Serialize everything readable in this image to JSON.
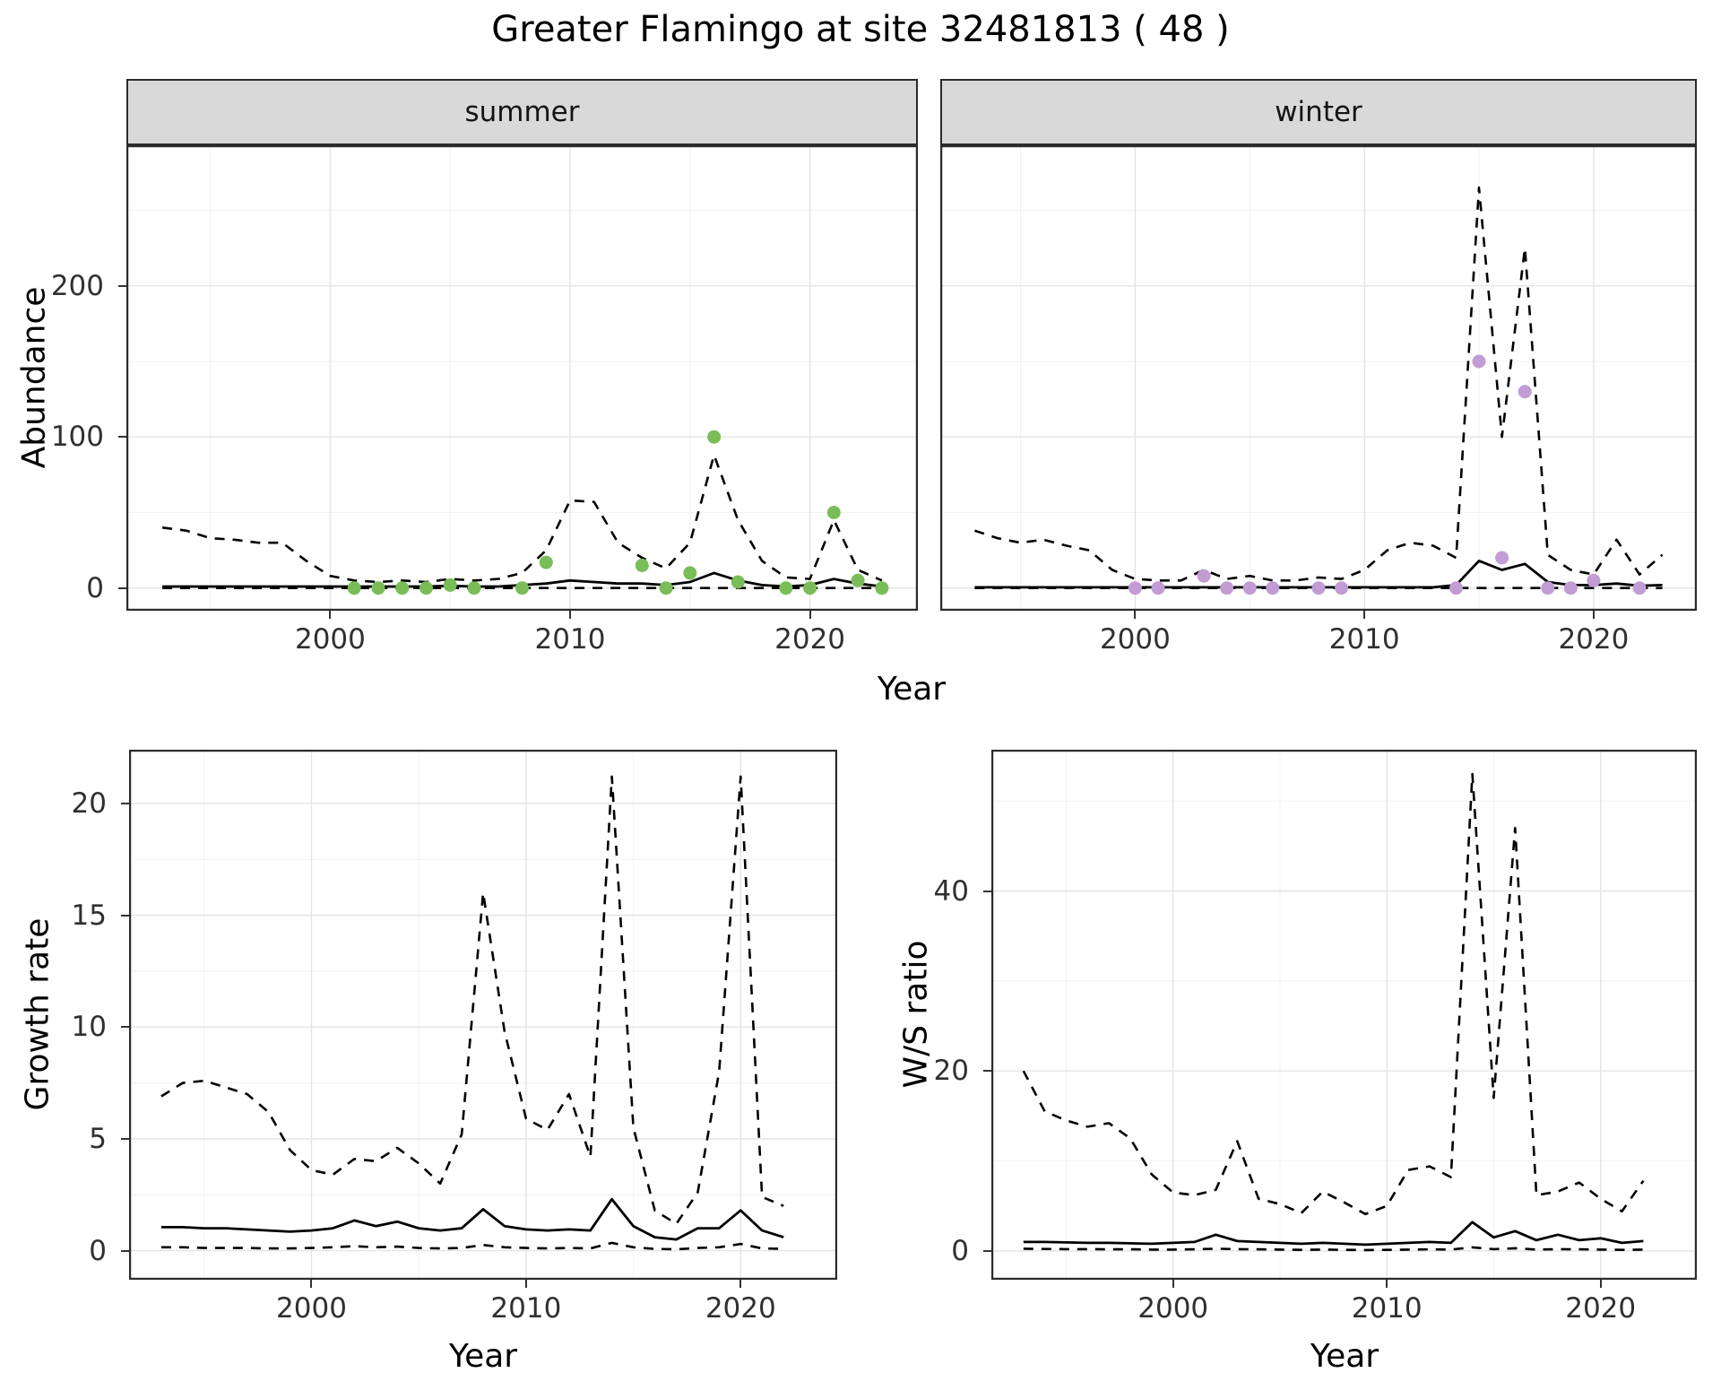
{
  "title": "Greater Flamingo at site 32481813 ( 48 )",
  "labels": {
    "year": "Year",
    "abundance": "Abundance",
    "growth_rate": "Growth rate",
    "ws_ratio": "W/S ratio"
  },
  "facets": {
    "summer": "summer",
    "winter": "winter"
  },
  "colors": {
    "line": "#000000",
    "summer_points": "#79bd58",
    "winter_points": "#c29cd4",
    "grid_major": "#e4e4e4",
    "grid_minor": "#f2f2f2",
    "strip_bg": "#d9d9d9",
    "panel_border": "#2b2b2b",
    "panel_bg": "#ffffff"
  },
  "chart_data": [
    {
      "id": "abundance_summer",
      "type": "line",
      "facet": "summer",
      "xlabel": "Year",
      "ylabel": "Abundance",
      "xlim": [
        1991.5,
        2024.5
      ],
      "ylim": [
        -15,
        293
      ],
      "x_ticks": [
        2000,
        2010,
        2020
      ],
      "x_minor": [
        1995,
        2005,
        2015
      ],
      "y_ticks": [
        0,
        100,
        200
      ],
      "y_minor": [
        50,
        150,
        250
      ],
      "show_y_tick_labels": true,
      "x": [
        1993,
        1994,
        1995,
        1996,
        1997,
        1998,
        1999,
        2000,
        2001,
        2002,
        2003,
        2004,
        2005,
        2006,
        2007,
        2008,
        2009,
        2010,
        2011,
        2012,
        2013,
        2014,
        2015,
        2016,
        2017,
        2018,
        2019,
        2020,
        2021,
        2022,
        2023
      ],
      "series": [
        {
          "name": "upper-ci",
          "style": "dashed",
          "values": [
            40,
            38,
            33,
            32,
            30,
            30,
            18,
            8,
            5,
            4,
            5,
            4,
            6,
            5,
            6,
            10,
            25,
            58,
            57,
            30,
            20,
            13,
            30,
            88,
            45,
            18,
            7,
            6,
            45,
            12,
            5
          ]
        },
        {
          "name": "median",
          "style": "solid",
          "values": [
            1,
            1,
            1,
            1,
            1,
            1,
            1,
            1,
            1,
            1,
            1,
            1,
            1.5,
            1,
            1,
            2,
            3,
            5,
            4,
            3,
            3,
            2,
            4,
            10,
            5,
            2,
            1,
            2,
            6,
            3,
            1
          ]
        },
        {
          "name": "lower-ci",
          "style": "dashed",
          "values": [
            0,
            0,
            0,
            0,
            0,
            0,
            0,
            0,
            0,
            0,
            0,
            0,
            0,
            0,
            0,
            0,
            0,
            0,
            0,
            0,
            0,
            0,
            0,
            0,
            0,
            0,
            0,
            0,
            0,
            0,
            0
          ]
        }
      ],
      "points": {
        "name": "observed-count-point",
        "color": "#79bd58",
        "x": [
          2001,
          2002,
          2003,
          2004,
          2005,
          2006,
          2008,
          2009,
          2013,
          2014,
          2015,
          2016,
          2017,
          2019,
          2020,
          2021,
          2022,
          2023
        ],
        "y": [
          0,
          0,
          0,
          0,
          2,
          0,
          0,
          17,
          15,
          0,
          10,
          100,
          4,
          0,
          0,
          50,
          5,
          0
        ]
      }
    },
    {
      "id": "abundance_winter",
      "type": "line",
      "facet": "winter",
      "xlabel": "Year",
      "ylabel": "Abundance",
      "xlim": [
        1991.5,
        2024.5
      ],
      "ylim": [
        -15,
        293
      ],
      "x_ticks": [
        2000,
        2010,
        2020
      ],
      "x_minor": [
        1995,
        2005,
        2015
      ],
      "y_ticks": [
        0,
        100,
        200
      ],
      "y_minor": [
        50,
        150,
        250
      ],
      "show_y_tick_labels": false,
      "x": [
        1993,
        1994,
        1995,
        1996,
        1997,
        1998,
        1999,
        2000,
        2001,
        2002,
        2003,
        2004,
        2005,
        2006,
        2007,
        2008,
        2009,
        2010,
        2011,
        2012,
        2013,
        2014,
        2015,
        2016,
        2017,
        2018,
        2019,
        2020,
        2021,
        2022,
        2023
      ],
      "series": [
        {
          "name": "upper-ci",
          "style": "dashed",
          "values": [
            38,
            33,
            30,
            32,
            28,
            25,
            12,
            6,
            5,
            5,
            12,
            6,
            8,
            5,
            5,
            7,
            6,
            12,
            25,
            30,
            28,
            20,
            265,
            100,
            225,
            22,
            12,
            9,
            32,
            9,
            22
          ]
        },
        {
          "name": "median",
          "style": "solid",
          "values": [
            0.5,
            0.5,
            0.5,
            0.5,
            0.5,
            0.5,
            0.5,
            0.5,
            0.5,
            0.5,
            0.5,
            0.5,
            0.5,
            0.5,
            0.5,
            0.5,
            0.5,
            0.5,
            0.5,
            0.5,
            0.5,
            2,
            18,
            12,
            16,
            4,
            2,
            2,
            3,
            1.5,
            2
          ]
        },
        {
          "name": "lower-ci",
          "style": "dashed",
          "values": [
            0,
            0,
            0,
            0,
            0,
            0,
            0,
            0,
            0,
            0,
            0,
            0,
            0,
            0,
            0,
            0,
            0,
            0,
            0,
            0,
            0,
            0,
            0,
            0,
            0,
            0,
            0,
            0,
            0,
            0,
            0
          ]
        }
      ],
      "points": {
        "name": "observed-count-point",
        "color": "#c29cd4",
        "x": [
          2000,
          2001,
          2003,
          2004,
          2005,
          2006,
          2008,
          2009,
          2014,
          2015,
          2016,
          2017,
          2018,
          2019,
          2020,
          2022
        ],
        "y": [
          0,
          0,
          8,
          0,
          0,
          0,
          0,
          0,
          0,
          150,
          20,
          130,
          0,
          0,
          5,
          0
        ]
      }
    },
    {
      "id": "growth_rate",
      "type": "line",
      "facet": null,
      "xlabel": "Year",
      "ylabel": "Growth rate",
      "xlim": [
        1991.5,
        2024.5
      ],
      "ylim": [
        -1.3,
        22.4
      ],
      "x_ticks": [
        2000,
        2010,
        2020
      ],
      "x_minor": [
        1995,
        2005,
        2015
      ],
      "y_ticks": [
        0,
        5,
        10,
        15,
        20
      ],
      "y_minor": [
        2.5,
        7.5,
        12.5,
        17.5
      ],
      "show_y_tick_labels": true,
      "x": [
        1993,
        1994,
        1995,
        1996,
        1997,
        1998,
        1999,
        2000,
        2001,
        2002,
        2003,
        2004,
        2005,
        2006,
        2007,
        2008,
        2009,
        2010,
        2011,
        2012,
        2013,
        2014,
        2015,
        2016,
        2017,
        2018,
        2019,
        2020,
        2021,
        2022
      ],
      "series": [
        {
          "name": "upper-ci",
          "style": "dashed",
          "values": [
            6.9,
            7.5,
            7.6,
            7.3,
            7.0,
            6.2,
            4.5,
            3.6,
            3.4,
            4.1,
            4.0,
            4.6,
            3.9,
            3.0,
            5.2,
            16.0,
            9.8,
            5.9,
            5.4,
            7.0,
            4.2,
            21.2,
            5.5,
            1.8,
            1.2,
            2.6,
            8.0,
            21.2,
            2.4,
            2.0
          ]
        },
        {
          "name": "median",
          "style": "solid",
          "values": [
            1.05,
            1.05,
            1.0,
            1.0,
            0.95,
            0.9,
            0.85,
            0.9,
            1.0,
            1.35,
            1.1,
            1.3,
            1.0,
            0.9,
            1.0,
            1.85,
            1.1,
            0.95,
            0.9,
            0.95,
            0.9,
            2.3,
            1.1,
            0.6,
            0.5,
            1.0,
            1.0,
            1.8,
            0.9,
            0.6
          ]
        },
        {
          "name": "lower-ci",
          "style": "dashed",
          "values": [
            0.15,
            0.15,
            0.12,
            0.12,
            0.12,
            0.1,
            0.1,
            0.12,
            0.15,
            0.2,
            0.15,
            0.18,
            0.12,
            0.1,
            0.12,
            0.25,
            0.15,
            0.12,
            0.1,
            0.12,
            0.1,
            0.35,
            0.15,
            0.08,
            0.06,
            0.12,
            0.15,
            0.3,
            0.1,
            0.08
          ]
        }
      ]
    },
    {
      "id": "ws_ratio",
      "type": "line",
      "facet": null,
      "xlabel": "Year",
      "ylabel": "W/S ratio",
      "xlim": [
        1991.5,
        2024.5
      ],
      "ylim": [
        -3.2,
        55.7
      ],
      "x_ticks": [
        2000,
        2010,
        2020
      ],
      "x_minor": [
        1995,
        2005,
        2015
      ],
      "y_ticks": [
        0,
        20,
        40
      ],
      "y_minor": [
        10,
        30,
        50
      ],
      "show_y_tick_labels": true,
      "x": [
        1993,
        1994,
        1995,
        1996,
        1997,
        1998,
        1999,
        2000,
        2001,
        2002,
        2003,
        2004,
        2005,
        2006,
        2007,
        2008,
        2009,
        2010,
        2011,
        2012,
        2013,
        2014,
        2015,
        2016,
        2017,
        2018,
        2019,
        2020,
        2021,
        2022
      ],
      "series": [
        {
          "name": "upper-ci",
          "style": "dashed",
          "values": [
            20,
            15.5,
            14.5,
            13.8,
            14.2,
            12.5,
            8.5,
            6.5,
            6.2,
            6.8,
            12.2,
            5.8,
            5.2,
            4.2,
            6.6,
            5.4,
            4.1,
            5.0,
            9.0,
            9.4,
            8.2,
            53,
            17,
            47,
            6.2,
            6.6,
            7.6,
            5.8,
            4.4,
            7.8
          ]
        },
        {
          "name": "median",
          "style": "solid",
          "values": [
            1.0,
            1.0,
            0.95,
            0.9,
            0.9,
            0.85,
            0.8,
            0.9,
            1.0,
            1.8,
            1.1,
            1.0,
            0.9,
            0.8,
            0.9,
            0.8,
            0.7,
            0.8,
            0.9,
            1.0,
            0.9,
            3.2,
            1.5,
            2.2,
            1.2,
            1.8,
            1.2,
            1.4,
            0.9,
            1.1
          ]
        },
        {
          "name": "lower-ci",
          "style": "dashed",
          "values": [
            0.25,
            0.22,
            0.2,
            0.2,
            0.18,
            0.18,
            0.15,
            0.15,
            0.18,
            0.25,
            0.2,
            0.18,
            0.15,
            0.12,
            0.15,
            0.12,
            0.1,
            0.12,
            0.15,
            0.18,
            0.15,
            0.4,
            0.2,
            0.3,
            0.15,
            0.2,
            0.18,
            0.15,
            0.12,
            0.15
          ]
        }
      ]
    }
  ]
}
